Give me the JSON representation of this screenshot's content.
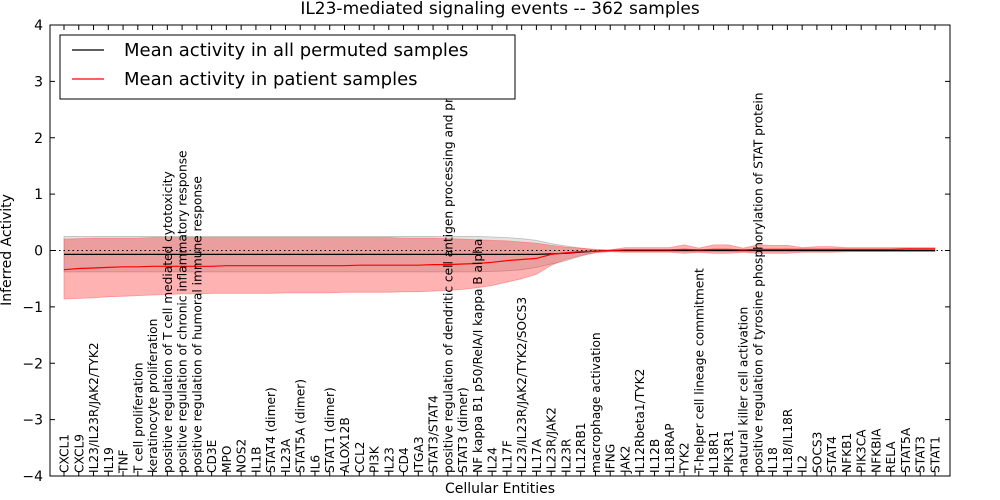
{
  "chart_data": {
    "type": "line",
    "title": "IL23-mediated signaling events -- 362 samples",
    "xlabel": "Cellular Entities",
    "ylabel": "Inferred Activity",
    "ylim": [
      -4,
      4
    ],
    "yticks": [
      -4,
      -3,
      -2,
      -1,
      0,
      1,
      2,
      3,
      4
    ],
    "reference_line": 0,
    "legend_position": "top-left",
    "categories": [
      "CXCL1",
      "CXCL9",
      "IL23/IL23R/JAK2/TYK2",
      "IL19",
      "TNF",
      "T cell proliferation",
      "keratinocyte proliferation",
      "positive regulation of T cell mediated cytotoxicity",
      "positive regulation of chronic inflammatory response",
      "positive regulation of humoral immune response",
      "CD3E",
      "MPO",
      "NOS2",
      "IL1B",
      "STAT4 (dimer)",
      "IL23A",
      "STAT5A (dimer)",
      "IL6",
      "STAT1 (dimer)",
      "ALOX12B",
      "CCL2",
      "PI3K",
      "IL23",
      "CD4",
      "ITGA3",
      "STAT3/STAT4",
      "positive regulation of dendritic cell antigen processing and presentation",
      "STAT3 (dimer)",
      "NF kappa B1 p50/RelA/I kappa B alpha",
      "IL24",
      "IL17F",
      "IL23/IL23R/JAK2/TYK2/SOCS3",
      "IL17A",
      "IL23R/JAK2",
      "IL23R",
      "IL12RB1",
      "macrophage activation",
      "IFNG",
      "JAK2",
      "IL12Rbeta1/TYK2",
      "IL12B",
      "IL18RAP",
      "TYK2",
      "T-helper cell lineage commitment",
      "IL18R1",
      "PIK3R1",
      "natural killer cell activation",
      "positive regulation of tyrosine phosphorylation of STAT protein",
      "IL18",
      "IL18/IL18R",
      "IL2",
      "SOCS3",
      "STAT4",
      "NFKB1",
      "PIK3CA",
      "NFKBIA",
      "RELA",
      "STAT5A",
      "STAT3",
      "STAT1"
    ],
    "series": [
      {
        "name": "Mean activity in all permuted samples",
        "color": "#000000",
        "values": [
          -0.07,
          -0.07,
          -0.07,
          -0.07,
          -0.07,
          -0.07,
          -0.07,
          -0.07,
          -0.07,
          -0.07,
          -0.07,
          -0.07,
          -0.07,
          -0.07,
          -0.07,
          -0.07,
          -0.07,
          -0.07,
          -0.07,
          -0.07,
          -0.07,
          -0.07,
          -0.07,
          -0.07,
          -0.07,
          -0.07,
          -0.07,
          -0.07,
          -0.07,
          -0.07,
          -0.07,
          -0.07,
          -0.07,
          -0.06,
          -0.05,
          -0.03,
          -0.01,
          0.0,
          0.0,
          0.0,
          0.0,
          0.0,
          0.0,
          0.0,
          0.0,
          0.0,
          0.0,
          0.0,
          0.0,
          0.0,
          0.0,
          0.0,
          0.0,
          0.0,
          0.0,
          0.0,
          0.0,
          0.0,
          0.0,
          0.0
        ],
        "band_upper": [
          0.25,
          0.25,
          0.25,
          0.25,
          0.25,
          0.25,
          0.25,
          0.25,
          0.25,
          0.25,
          0.25,
          0.25,
          0.25,
          0.25,
          0.25,
          0.25,
          0.25,
          0.25,
          0.25,
          0.25,
          0.25,
          0.25,
          0.25,
          0.25,
          0.25,
          0.25,
          0.25,
          0.25,
          0.25,
          0.24,
          0.23,
          0.21,
          0.18,
          0.12,
          0.08,
          0.04,
          0.01,
          0.0,
          0.01,
          0.01,
          0.01,
          0.01,
          0.01,
          0.01,
          0.01,
          0.01,
          0.01,
          0.01,
          0.01,
          0.01,
          0.01,
          0.01,
          0.01,
          0.01,
          0.01,
          0.01,
          0.01,
          0.01,
          0.01,
          0.01
        ],
        "band_lower": [
          -0.38,
          -0.38,
          -0.38,
          -0.38,
          -0.38,
          -0.38,
          -0.38,
          -0.38,
          -0.38,
          -0.38,
          -0.38,
          -0.38,
          -0.38,
          -0.38,
          -0.38,
          -0.38,
          -0.38,
          -0.38,
          -0.38,
          -0.38,
          -0.38,
          -0.38,
          -0.38,
          -0.38,
          -0.38,
          -0.38,
          -0.38,
          -0.38,
          -0.38,
          -0.37,
          -0.36,
          -0.34,
          -0.3,
          -0.24,
          -0.18,
          -0.1,
          -0.03,
          -0.01,
          -0.01,
          -0.01,
          -0.01,
          -0.01,
          -0.01,
          -0.01,
          -0.01,
          -0.01,
          -0.01,
          -0.01,
          -0.01,
          -0.01,
          -0.01,
          -0.01,
          -0.01,
          -0.01,
          -0.01,
          -0.01,
          -0.01,
          -0.01,
          -0.01,
          -0.01
        ]
      },
      {
        "name": "Mean activity in patient samples",
        "color": "#ff0000",
        "values": [
          -0.34,
          -0.32,
          -0.31,
          -0.3,
          -0.29,
          -0.29,
          -0.28,
          -0.28,
          -0.28,
          -0.28,
          -0.28,
          -0.27,
          -0.27,
          -0.27,
          -0.27,
          -0.27,
          -0.27,
          -0.27,
          -0.27,
          -0.27,
          -0.26,
          -0.26,
          -0.26,
          -0.26,
          -0.26,
          -0.25,
          -0.25,
          -0.24,
          -0.23,
          -0.21,
          -0.18,
          -0.16,
          -0.14,
          -0.07,
          -0.04,
          -0.02,
          -0.01,
          0.0,
          0.01,
          0.01,
          0.01,
          0.01,
          0.02,
          0.01,
          0.02,
          0.02,
          0.01,
          0.02,
          0.02,
          0.02,
          0.02,
          0.02,
          0.02,
          0.02,
          0.02,
          0.02,
          0.02,
          0.03,
          0.03,
          0.03
        ],
        "band_upper": [
          0.2,
          0.21,
          0.22,
          0.22,
          0.22,
          0.22,
          0.23,
          0.23,
          0.23,
          0.23,
          0.23,
          0.23,
          0.23,
          0.23,
          0.23,
          0.23,
          0.23,
          0.23,
          0.23,
          0.23,
          0.23,
          0.23,
          0.23,
          0.22,
          0.22,
          0.22,
          0.21,
          0.2,
          0.19,
          0.18,
          0.17,
          0.15,
          0.13,
          0.09,
          0.06,
          0.04,
          0.02,
          0.01,
          0.05,
          0.05,
          0.05,
          0.05,
          0.1,
          0.04,
          0.1,
          0.1,
          0.04,
          0.1,
          0.09,
          0.09,
          0.05,
          0.07,
          0.07,
          0.05,
          0.05,
          0.05,
          0.05,
          0.05,
          0.05,
          0.05
        ],
        "band_lower": [
          -0.86,
          -0.85,
          -0.84,
          -0.82,
          -0.81,
          -0.8,
          -0.79,
          -0.78,
          -0.77,
          -0.77,
          -0.76,
          -0.76,
          -0.76,
          -0.76,
          -0.76,
          -0.75,
          -0.75,
          -0.75,
          -0.75,
          -0.74,
          -0.74,
          -0.74,
          -0.74,
          -0.73,
          -0.73,
          -0.72,
          -0.71,
          -0.69,
          -0.66,
          -0.62,
          -0.56,
          -0.5,
          -0.42,
          -0.26,
          -0.16,
          -0.09,
          -0.04,
          -0.02,
          -0.03,
          -0.03,
          -0.03,
          -0.03,
          -0.05,
          -0.03,
          -0.05,
          -0.05,
          -0.03,
          -0.05,
          -0.05,
          -0.05,
          -0.03,
          -0.03,
          -0.03,
          -0.02,
          -0.02,
          -0.02,
          -0.02,
          -0.02,
          -0.02,
          -0.02
        ]
      }
    ]
  }
}
